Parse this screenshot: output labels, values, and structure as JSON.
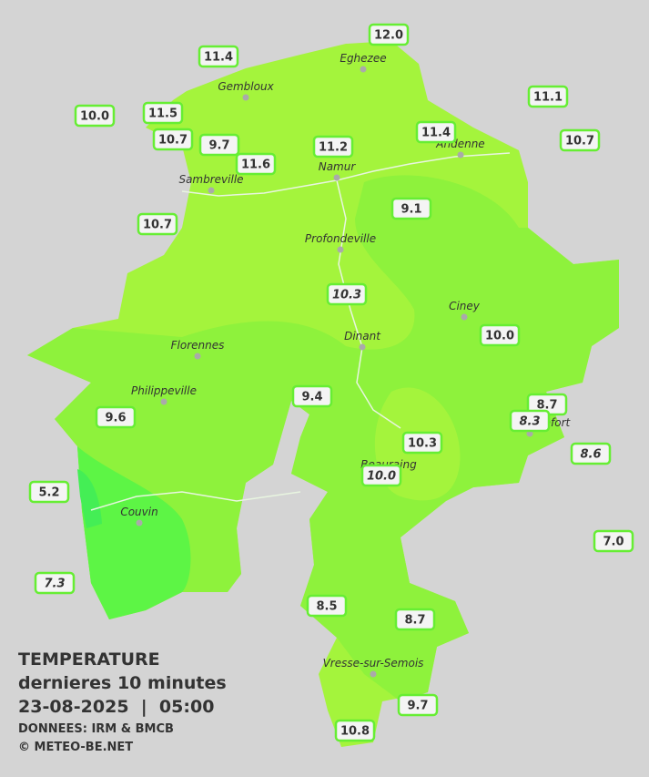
{
  "title": {
    "line1": "TEMPERATURE",
    "line2": "dernieres 10 minutes",
    "line3": "23-08-2025  |  05:00",
    "source": "DONNEES: IRM & BMCB",
    "credit": "© METEO-BE.NET"
  },
  "cities": [
    "Eghezee",
    "Gembloux",
    "Andenne",
    "Namur",
    "Sambreville",
    "Profondeville",
    "Ciney",
    "Dinant",
    "Florennes",
    "Philippeville",
    "Beauraing",
    "Rochefort",
    "Couvin",
    "Vresse-sur-Semois"
  ],
  "stations": [
    {
      "label": "12.0",
      "italic": false
    },
    {
      "label": "11.4",
      "italic": false
    },
    {
      "label": "11.1",
      "italic": false
    },
    {
      "label": "10.0",
      "italic": false
    },
    {
      "label": "11.5",
      "italic": false
    },
    {
      "label": "10.7",
      "italic": false
    },
    {
      "label": "9.7",
      "italic": false
    },
    {
      "label": "11.2",
      "italic": false
    },
    {
      "label": "11.4",
      "italic": false
    },
    {
      "label": "10.7",
      "italic": false
    },
    {
      "label": "11.6",
      "italic": false
    },
    {
      "label": "10.7",
      "italic": false
    },
    {
      "label": "9.1",
      "italic": false
    },
    {
      "label": "10.3",
      "italic": true
    },
    {
      "label": "10.0",
      "italic": false
    },
    {
      "label": "9.4",
      "italic": false
    },
    {
      "label": "8.7",
      "italic": false
    },
    {
      "label": "8.3",
      "italic": true
    },
    {
      "label": "9.6",
      "italic": false
    },
    {
      "label": "8.6",
      "italic": true
    },
    {
      "label": "10.3",
      "italic": false
    },
    {
      "label": "10.0",
      "italic": true
    },
    {
      "label": "5.2",
      "italic": false
    },
    {
      "label": "7.0",
      "italic": false
    },
    {
      "label": "7.3",
      "italic": true
    },
    {
      "label": "8.5",
      "italic": false
    },
    {
      "label": "8.7",
      "italic": false
    },
    {
      "label": "9.7",
      "italic": false
    },
    {
      "label": "10.8",
      "italic": false
    }
  ]
}
